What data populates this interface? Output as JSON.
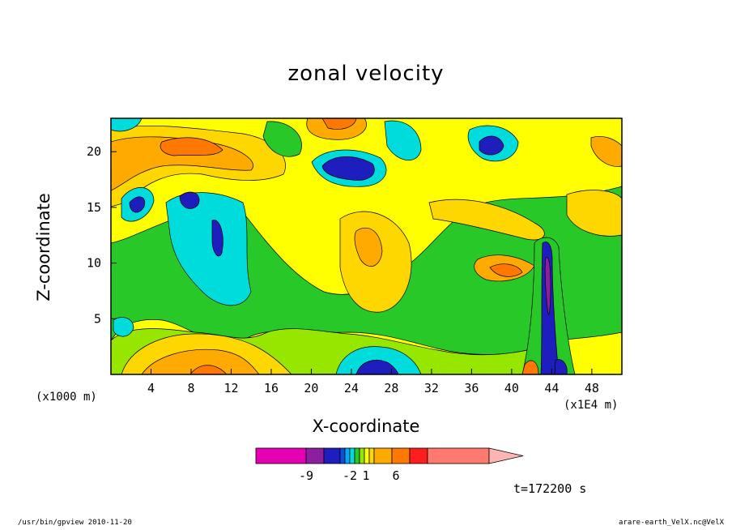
{
  "chart_data": {
    "type": "heatmap",
    "title": "zonal velocity",
    "xlabel": "X-coordinate",
    "ylabel": "Z-coordinate",
    "x_unit_note": "(x1000 m)",
    "x_unit_note_right": "(x1E4 m)",
    "xlim": [
      0,
      51
    ],
    "ylim": [
      0,
      23
    ],
    "x_ticks": [
      4,
      8,
      12,
      16,
      20,
      24,
      28,
      32,
      36,
      40,
      44,
      48
    ],
    "y_ticks": [
      5,
      10,
      15,
      20
    ],
    "colorbar": {
      "labels": [
        {
          "text": "-9",
          "value": -9
        },
        {
          "text": "-2",
          "value": -2
        },
        {
          "text": "1",
          "value": 1
        },
        {
          "text": "6",
          "value": 6
        }
      ],
      "colors": [
        "#e600b4",
        "#8c1ea0",
        "#1e1ebe",
        "#0a50dc",
        "#00aaff",
        "#00dcdc",
        "#28c828",
        "#96e600",
        "#ffff00",
        "#ffd700",
        "#ffaa00",
        "#ff7800",
        "#ff1e1e",
        "#ff7a6e",
        "#ffb4b4"
      ]
    },
    "annotation": "t=172200 s"
  },
  "footer": {
    "left": "/usr/bin/gpview   2010-11-20",
    "right": "arare-earth_VelX.nc@VelX"
  }
}
